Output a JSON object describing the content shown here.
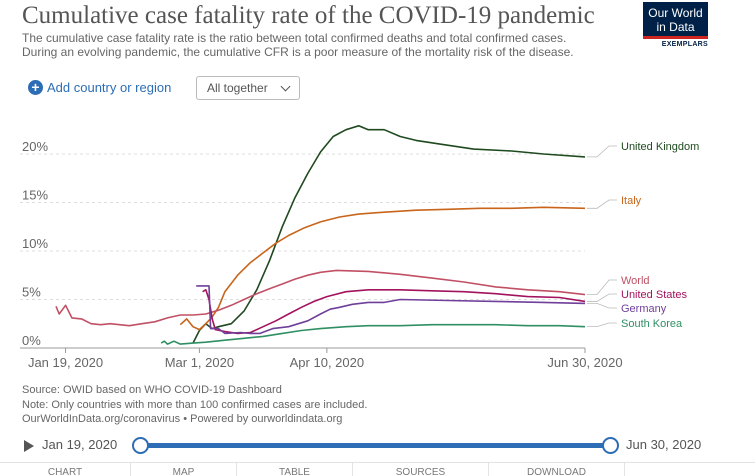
{
  "header": {
    "title": "Cumulative case fatality rate of the COVID-19 pandemic",
    "subtitle_line1": "The cumulative case fatality rate is the ratio between total confirmed deaths and total confirmed cases.",
    "subtitle_line2": "During an evolving pandemic, the cumulative CFR is a poor measure of the mortality risk of the disease."
  },
  "logo": {
    "line1": "Our World",
    "line2": "in Data",
    "sub": "EXEMPLARS"
  },
  "controls": {
    "add_country": "Add country or region",
    "select_value": "All together"
  },
  "footer": {
    "source": "Source: OWID based on WHO COVID-19 Dashboard",
    "note": "Note: Only countries with more than 100 confirmed cases are included.",
    "credit": "OurWorldInData.org/coronavirus • Powered by ourworldindata.org"
  },
  "timeline": {
    "start": "Jan 19, 2020",
    "end": "Jun 30, 2020"
  },
  "tabs": [
    "CHART",
    "MAP",
    "TABLE",
    "SOURCES",
    "DOWNLOAD"
  ],
  "colors": {
    "uk": "#1f4a1f",
    "italy": "#c8651b",
    "world": "#c15065",
    "us": "#a2135e",
    "germany": "#6f3f9a",
    "south_korea": "#2f8f63",
    "accent": "#2d6db5"
  },
  "chart_data": {
    "type": "line",
    "x_label_ticks": [
      "Jan 19, 2020",
      "Mar 1, 2020",
      "Apr 10, 2020",
      "Jun 30, 2020"
    ],
    "x_tick_days": [
      0,
      42,
      82,
      163
    ],
    "y_ticks": [
      "0%",
      "5%",
      "10%",
      "15%",
      "20%"
    ],
    "y_tick_values": [
      0,
      5,
      10,
      15,
      20
    ],
    "xlim": [
      -3,
      163
    ],
    "ylim": [
      0,
      23.5
    ],
    "grid": "horizontal",
    "legend": "right-labels",
    "series": [
      {
        "name": "United Kingdom",
        "color_key": "uk",
        "points": [
          [
            40,
            0.5
          ],
          [
            42,
            1.8
          ],
          [
            44,
            2.5
          ],
          [
            46,
            2.0
          ],
          [
            48,
            2.2
          ],
          [
            52,
            2.5
          ],
          [
            56,
            3.8
          ],
          [
            60,
            6
          ],
          [
            64,
            9
          ],
          [
            68,
            12.5
          ],
          [
            72,
            15.5
          ],
          [
            76,
            18
          ],
          [
            80,
            20.2
          ],
          [
            84,
            21.8
          ],
          [
            88,
            22.5
          ],
          [
            92,
            22.9
          ],
          [
            95,
            22.5
          ],
          [
            100,
            22.5
          ],
          [
            105,
            21.8
          ],
          [
            110,
            21.4
          ],
          [
            118,
            21
          ],
          [
            128,
            20.5
          ],
          [
            140,
            20.3
          ],
          [
            150,
            20
          ],
          [
            163,
            19.7
          ]
        ]
      },
      {
        "name": "Italy",
        "color_key": "italy",
        "points": [
          [
            36,
            2.4
          ],
          [
            38,
            3.0
          ],
          [
            40,
            2.2
          ],
          [
            42,
            1.9
          ],
          [
            44,
            2.5
          ],
          [
            46,
            3.2
          ],
          [
            48,
            4.2
          ],
          [
            50,
            5.8
          ],
          [
            54,
            7.5
          ],
          [
            58,
            8.8
          ],
          [
            62,
            9.8
          ],
          [
            66,
            10.8
          ],
          [
            70,
            11.6
          ],
          [
            75,
            12.4
          ],
          [
            80,
            13.0
          ],
          [
            86,
            13.5
          ],
          [
            92,
            13.8
          ],
          [
            100,
            14.0
          ],
          [
            110,
            14.2
          ],
          [
            120,
            14.3
          ],
          [
            130,
            14.4
          ],
          [
            140,
            14.4
          ],
          [
            150,
            14.5
          ],
          [
            163,
            14.4
          ]
        ]
      },
      {
        "name": "World",
        "color_key": "world",
        "points": [
          [
            -3,
            4.3
          ],
          [
            -2,
            3.5
          ],
          [
            0,
            4.4
          ],
          [
            2,
            3.1
          ],
          [
            5,
            3.0
          ],
          [
            8,
            2.5
          ],
          [
            11,
            2.4
          ],
          [
            14,
            2.5
          ],
          [
            17,
            2.4
          ],
          [
            20,
            2.3
          ],
          [
            24,
            2.5
          ],
          [
            28,
            2.7
          ],
          [
            32,
            3.1
          ],
          [
            36,
            3.4
          ],
          [
            40,
            3.4
          ],
          [
            44,
            3.5
          ],
          [
            48,
            3.9
          ],
          [
            52,
            4.4
          ],
          [
            56,
            5.0
          ],
          [
            60,
            5.6
          ],
          [
            64,
            6.1
          ],
          [
            68,
            6.6
          ],
          [
            72,
            7.1
          ],
          [
            76,
            7.5
          ],
          [
            80,
            7.8
          ],
          [
            85,
            8.0
          ],
          [
            95,
            7.9
          ],
          [
            105,
            7.6
          ],
          [
            115,
            7.2
          ],
          [
            125,
            6.8
          ],
          [
            135,
            6.3
          ],
          [
            145,
            6.0
          ],
          [
            155,
            5.8
          ],
          [
            163,
            5.5
          ]
        ]
      },
      {
        "name": "United States",
        "color_key": "us",
        "points": [
          [
            43,
            5.8
          ],
          [
            44,
            6.0
          ],
          [
            45,
            5.0
          ],
          [
            46,
            3.0
          ],
          [
            47,
            1.9
          ],
          [
            50,
            1.7
          ],
          [
            54,
            1.5
          ],
          [
            58,
            1.6
          ],
          [
            62,
            2.2
          ],
          [
            66,
            2.8
          ],
          [
            70,
            3.5
          ],
          [
            74,
            4.2
          ],
          [
            78,
            4.8
          ],
          [
            82,
            5.3
          ],
          [
            88,
            5.8
          ],
          [
            95,
            6.0
          ],
          [
            105,
            6.0
          ],
          [
            115,
            5.9
          ],
          [
            125,
            5.8
          ],
          [
            135,
            5.6
          ],
          [
            145,
            5.3
          ],
          [
            155,
            5.2
          ],
          [
            163,
            4.8
          ]
        ]
      },
      {
        "name": "Germany",
        "color_key": "germany",
        "points": [
          [
            41,
            6.4
          ],
          [
            45,
            6.4
          ],
          [
            45.5,
            2.0
          ],
          [
            48,
            2.0
          ],
          [
            50,
            1.5
          ],
          [
            55,
            1.6
          ],
          [
            58,
            1.5
          ],
          [
            61,
            1.5
          ],
          [
            65,
            2.0
          ],
          [
            70,
            2.2
          ],
          [
            76,
            2.8
          ],
          [
            80,
            3.5
          ],
          [
            83,
            4.0
          ],
          [
            86,
            4.2
          ],
          [
            90,
            4.5
          ],
          [
            95,
            4.7
          ],
          [
            100,
            4.7
          ],
          [
            105,
            5.0
          ],
          [
            120,
            4.9
          ],
          [
            135,
            4.8
          ],
          [
            150,
            4.7
          ],
          [
            163,
            4.6
          ]
        ]
      },
      {
        "name": "South Korea",
        "color_key": "south_korea",
        "points": [
          [
            30,
            0.5
          ],
          [
            31,
            0.7
          ],
          [
            32,
            0.4
          ],
          [
            34,
            0.7
          ],
          [
            36,
            0.4
          ],
          [
            40,
            0.5
          ],
          [
            44,
            0.6
          ],
          [
            50,
            0.8
          ],
          [
            56,
            1.0
          ],
          [
            62,
            1.2
          ],
          [
            68,
            1.5
          ],
          [
            74,
            1.8
          ],
          [
            80,
            2.0
          ],
          [
            88,
            2.2
          ],
          [
            95,
            2.3
          ],
          [
            105,
            2.3
          ],
          [
            115,
            2.4
          ],
          [
            125,
            2.4
          ],
          [
            135,
            2.4
          ],
          [
            145,
            2.3
          ],
          [
            155,
            2.3
          ],
          [
            163,
            2.2
          ]
        ]
      }
    ]
  }
}
